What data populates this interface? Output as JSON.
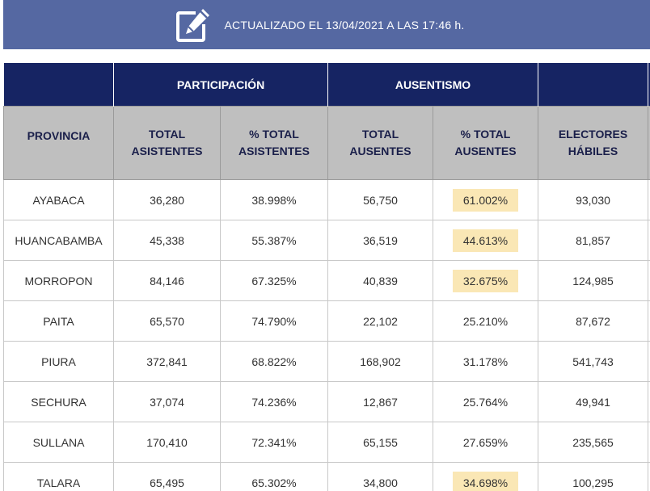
{
  "banner": {
    "text": "ACTUALIZADO EL 13/04/2021 A LAS 17:46 h."
  },
  "table": {
    "groups": {
      "participacion": "PARTICIPACIÓN",
      "ausentismo": "AUSENTISMO"
    },
    "columns": {
      "provincia": "PROVINCIA",
      "total_asistentes": "TOTAL ASISTENTES",
      "pct_asistentes": "% TOTAL ASISTENTES",
      "total_ausentes": "TOTAL AUSENTES",
      "pct_ausentes": "% TOTAL AUSENTES",
      "electores": "ELECTORES HÁBILES"
    },
    "highlight_color": "#fae7b5",
    "rows": [
      {
        "provincia": "AYABACA",
        "asistentes": "36,280",
        "pct_asistentes": "38.998%",
        "ausentes": "56,750",
        "pct_ausentes": "61.002%",
        "electores": "93,030",
        "highlight": true
      },
      {
        "provincia": "HUANCABAMBA",
        "asistentes": "45,338",
        "pct_asistentes": "55.387%",
        "ausentes": "36,519",
        "pct_ausentes": "44.613%",
        "electores": "81,857",
        "highlight": true
      },
      {
        "provincia": "MORROPON",
        "asistentes": "84,146",
        "pct_asistentes": "67.325%",
        "ausentes": "40,839",
        "pct_ausentes": "32.675%",
        "electores": "124,985",
        "highlight": true
      },
      {
        "provincia": "PAITA",
        "asistentes": "65,570",
        "pct_asistentes": "74.790%",
        "ausentes": "22,102",
        "pct_ausentes": "25.210%",
        "electores": "87,672",
        "highlight": false
      },
      {
        "provincia": "PIURA",
        "asistentes": "372,841",
        "pct_asistentes": "68.822%",
        "ausentes": "168,902",
        "pct_ausentes": "31.178%",
        "electores": "541,743",
        "highlight": false
      },
      {
        "provincia": "SECHURA",
        "asistentes": "37,074",
        "pct_asistentes": "74.236%",
        "ausentes": "12,867",
        "pct_ausentes": "25.764%",
        "electores": "49,941",
        "highlight": false
      },
      {
        "provincia": "SULLANA",
        "asistentes": "170,410",
        "pct_asistentes": "72.341%",
        "ausentes": "65,155",
        "pct_ausentes": "27.659%",
        "electores": "235,565",
        "highlight": false
      },
      {
        "provincia": "TALARA",
        "asistentes": "65,495",
        "pct_asistentes": "65.302%",
        "ausentes": "34,800",
        "pct_ausentes": "34.698%",
        "electores": "100,295",
        "highlight": true
      }
    ]
  }
}
